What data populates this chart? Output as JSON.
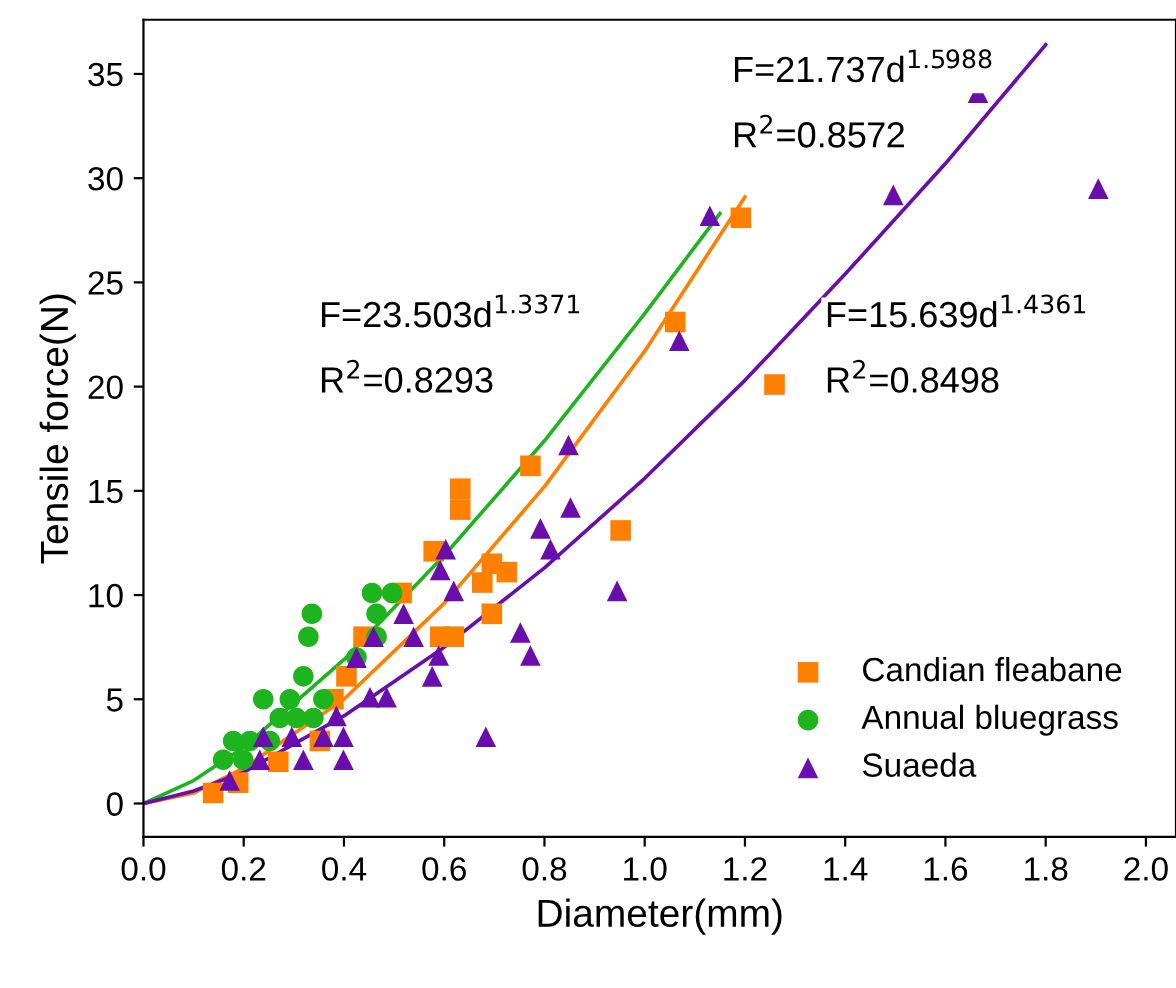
{
  "chart_data": {
    "type": "scatter",
    "xlabel": "Diameter(mm)",
    "ylabel": "Tensile force(N)",
    "xlim": [
      0,
      2.06
    ],
    "ylim": [
      -1.6,
      37.6
    ],
    "xticks": [
      {
        "value": 0,
        "label": "0.0"
      },
      0.2,
      0.4,
      0.6,
      0.8,
      {
        "value": 1,
        "label": "1.0"
      },
      1.2,
      1.4,
      1.6,
      1.8,
      {
        "value": 2,
        "label": "2.0"
      }
    ],
    "yticks": [
      0,
      5,
      10,
      15,
      20,
      25,
      30,
      35
    ],
    "grid": false,
    "legend": "bottom right",
    "series": [
      {
        "name": "Candian fleabane",
        "marker": "square",
        "color": "#ff8000",
        "x": [
          0.139,
          0.189,
          0.269,
          0.352,
          0.379,
          0.405,
          0.439,
          0.515,
          0.579,
          0.592,
          0.619,
          0.632,
          0.632,
          0.676,
          0.695,
          0.695,
          0.725,
          0.772,
          0.952,
          1.061,
          1.192,
          1.259
        ],
        "values": [
          0.5,
          1.0,
          2.0,
          3.0,
          5.0,
          6.1,
          8.0,
          10.1,
          12.1,
          8.0,
          8.0,
          14.1,
          15.1,
          10.6,
          11.5,
          9.1,
          11.1,
          16.2,
          13.1,
          23.1,
          28.1,
          20.1
        ]
      },
      {
        "name": "Annual bluegrass",
        "marker": "circle",
        "color": "#1db51d",
        "x": [
          0.159,
          0.199,
          0.179,
          0.212,
          0.252,
          0.239,
          0.292,
          0.359,
          0.272,
          0.305,
          0.339,
          0.319,
          0.329,
          0.336,
          0.425,
          0.465,
          0.465,
          0.456,
          0.496
        ],
        "values": [
          2.1,
          2.1,
          3.0,
          3.0,
          3.0,
          5.0,
          5.0,
          5.0,
          4.1,
          4.1,
          4.1,
          6.1,
          8.0,
          9.1,
          7.0,
          8.0,
          9.1,
          10.1,
          10.1
        ]
      },
      {
        "name": "Suaeda",
        "marker": "triangle",
        "color": "#6a0dad",
        "x": [
          0.172,
          0.232,
          0.319,
          0.399,
          0.239,
          0.296,
          0.359,
          0.399,
          0.385,
          0.452,
          0.485,
          0.425,
          0.459,
          0.539,
          0.519,
          0.576,
          0.589,
          0.619,
          0.592,
          0.603,
          0.683,
          0.752,
          0.772,
          0.792,
          0.812,
          0.852,
          0.848,
          0.945,
          1.069,
          1.13,
          1.496,
          1.665,
          1.905
        ],
        "values": [
          1.1,
          2.1,
          2.1,
          2.1,
          3.2,
          3.2,
          3.2,
          3.2,
          4.2,
          5.1,
          5.1,
          7.0,
          8.0,
          8.0,
          9.1,
          6.1,
          7.1,
          10.2,
          11.2,
          12.2,
          3.2,
          8.2,
          7.1,
          13.2,
          12.2,
          14.2,
          17.2,
          10.2,
          22.2,
          28.2,
          29.2,
          34.1,
          29.5
        ]
      },
      {
        "type": "line",
        "color": "#ff8000",
        "marker": "none",
        "x": [
          0,
          0.1,
          0.2,
          0.4,
          0.6,
          0.8,
          1.0,
          1.2
        ],
        "values": [
          0,
          0.5,
          1.7,
          5.0,
          9.6,
          15.2,
          21.7,
          29.1
        ]
      },
      {
        "type": "line",
        "color": "#1db51d",
        "marker": "none",
        "x": [
          0,
          0.1,
          0.2,
          0.4,
          0.6,
          0.8,
          1.0,
          1.15
        ],
        "values": [
          0,
          1.1,
          2.7,
          6.9,
          11.9,
          17.4,
          23.5,
          28.3
        ]
      },
      {
        "type": "line",
        "color": "#6a0dad",
        "marker": "none",
        "x": [
          0,
          0.1,
          0.2,
          0.4,
          0.6,
          0.8,
          1.0,
          1.2,
          1.4,
          1.6,
          1.8
        ],
        "values": [
          0,
          0.6,
          1.5,
          4.2,
          7.5,
          11.3,
          15.6,
          20.3,
          25.4,
          30.7,
          36.4
        ]
      }
    ],
    "annotations": [
      "F=21.737d$^{1.5988}$",
      "R$^{2}$=0.8572",
      "F=23.503d$^{1.3371}$",
      "R$^{2}$=0.8293",
      "F=15.639d$^{1.4361}$",
      "R$^{2}$=0.8498"
    ]
  }
}
